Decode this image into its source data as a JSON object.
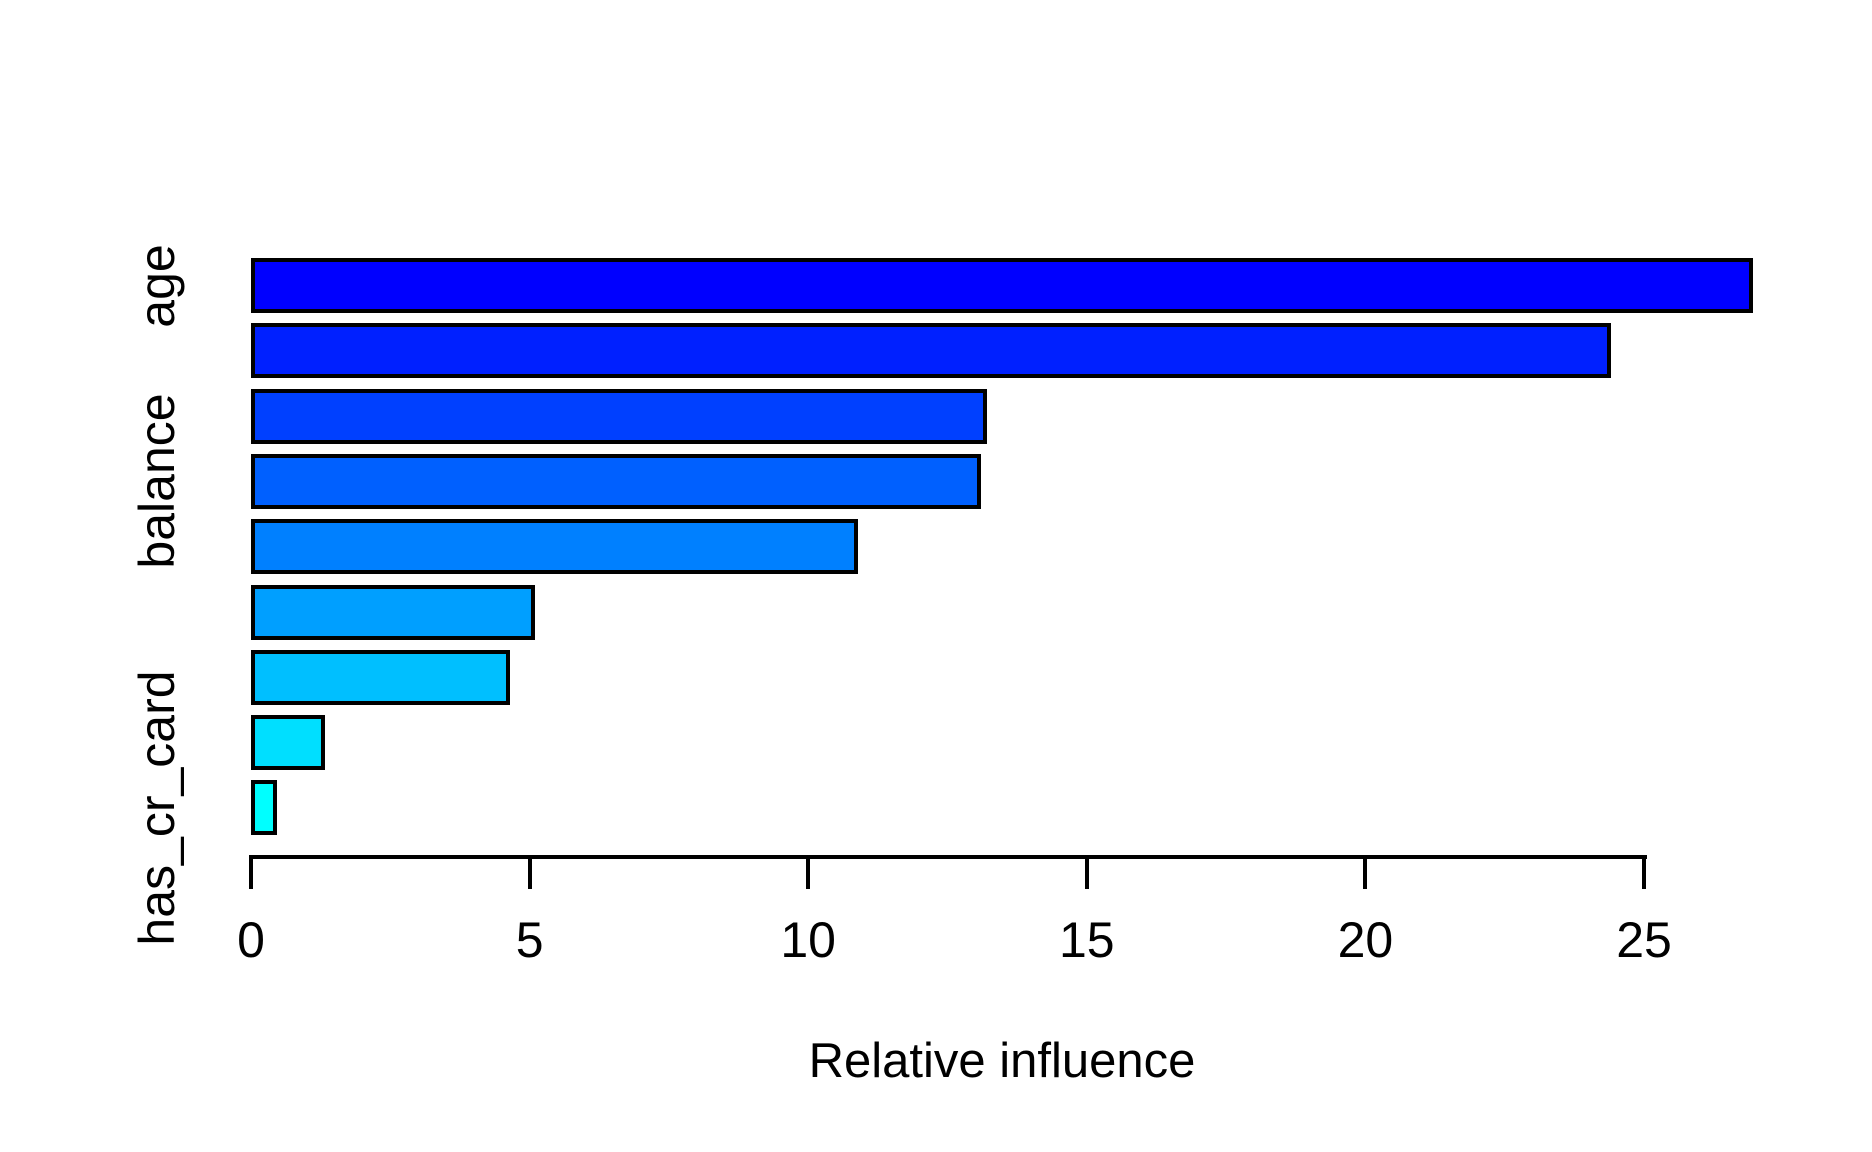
{
  "chart_data": {
    "type": "bar",
    "orientation": "horizontal",
    "title": "",
    "xlabel": "Relative influence",
    "ylabel": "",
    "categories": [
      "age",
      "",
      "",
      "balance",
      "",
      "",
      "",
      "",
      "has_cr_card"
    ],
    "values": [
      26.95,
      24.4,
      13.2,
      13.1,
      10.9,
      5.1,
      4.65,
      1.33,
      0.46
    ],
    "bar_colors": [
      "#0000ff",
      "#0020ff",
      "#0040ff",
      "#0060ff",
      "#0080ff",
      "#009fff",
      "#00bfff",
      "#00dfff",
      "#00ffff"
    ],
    "bar_border_color": "#000000",
    "x_ticks": [
      "0",
      "5",
      "10",
      "15",
      "20",
      "25"
    ],
    "x_tick_values": [
      0,
      5,
      10,
      15,
      20,
      25
    ],
    "xlim": [
      0,
      28
    ],
    "grid": false,
    "legend_position": "none",
    "background_color": "#ffffff",
    "text_color": "#000000"
  }
}
